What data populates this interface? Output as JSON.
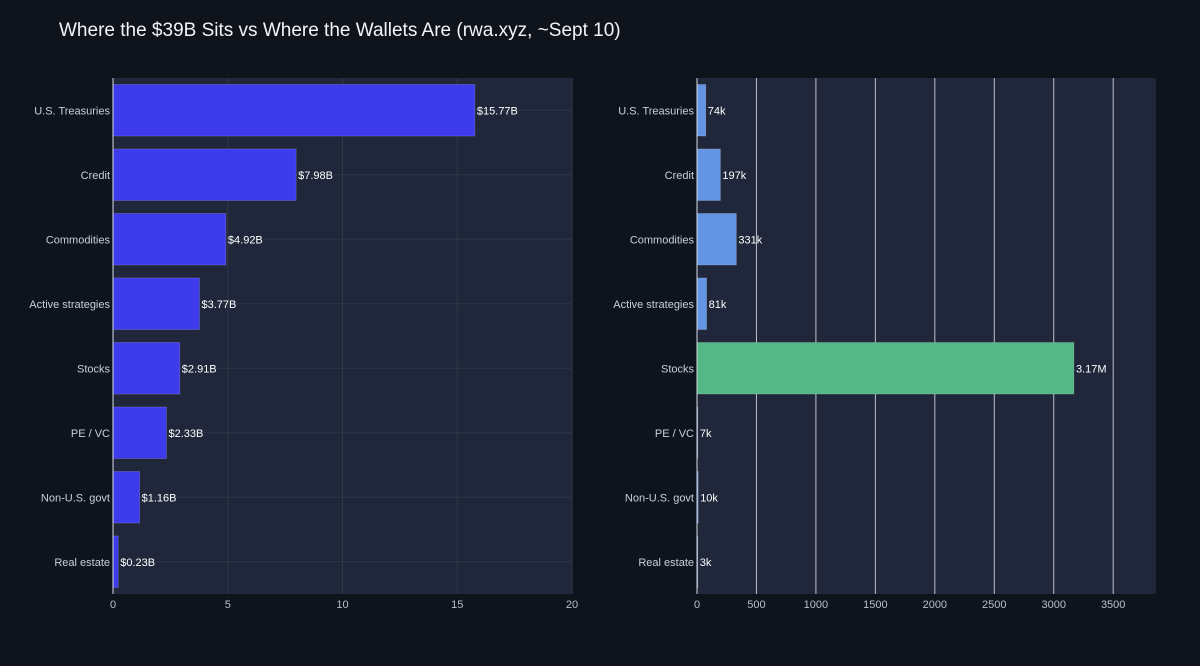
{
  "title": "Where the $39B Sits vs Where the Wallets Are (rwa.xyz, ~Sept 10)",
  "colors": {
    "background": "#0f131c",
    "plot_bg": "#20273a",
    "grid": "#2f3749",
    "left_bar": "#3d3bec",
    "right_bar": "#6494e4",
    "highlight_bar": "#54b886"
  },
  "chart_data": [
    {
      "type": "bar",
      "orientation": "horizontal",
      "categories": [
        "U.S. Treasuries",
        "Credit",
        "Commodities",
        "Active strategies",
        "Stocks",
        "PE / VC",
        "Non-U.S. govt",
        "Real estate"
      ],
      "values": [
        15.77,
        7.98,
        4.92,
        3.77,
        2.91,
        2.33,
        1.16,
        0.23
      ],
      "data_labels": [
        "$15.77B",
        "$7.98B",
        "$4.92B",
        "$3.77B",
        "$2.91B",
        "$2.33B",
        "$1.16B",
        "$0.23B"
      ],
      "xlim": [
        0,
        20
      ],
      "xticks": [
        0,
        5,
        10,
        15,
        20
      ],
      "xlabel": "",
      "ylabel": "",
      "grid": true
    },
    {
      "type": "bar",
      "orientation": "horizontal",
      "categories": [
        "U.S. Treasuries",
        "Credit",
        "Commodities",
        "Active strategies",
        "Stocks",
        "PE / VC",
        "Non-U.S. govt",
        "Real estate"
      ],
      "values": [
        74,
        197,
        331,
        81,
        3170,
        7,
        10,
        3
      ],
      "data_labels": [
        "74k",
        "197k",
        "331k",
        "81k",
        "3.17M",
        "7k",
        "10k",
        "3k"
      ],
      "highlight_category": "Stocks",
      "xlim": [
        0,
        3860
      ],
      "xticks": [
        0,
        500,
        1000,
        1500,
        2000,
        2500,
        3000,
        3500
      ],
      "xlabel": "",
      "ylabel": "",
      "grid": true
    }
  ]
}
